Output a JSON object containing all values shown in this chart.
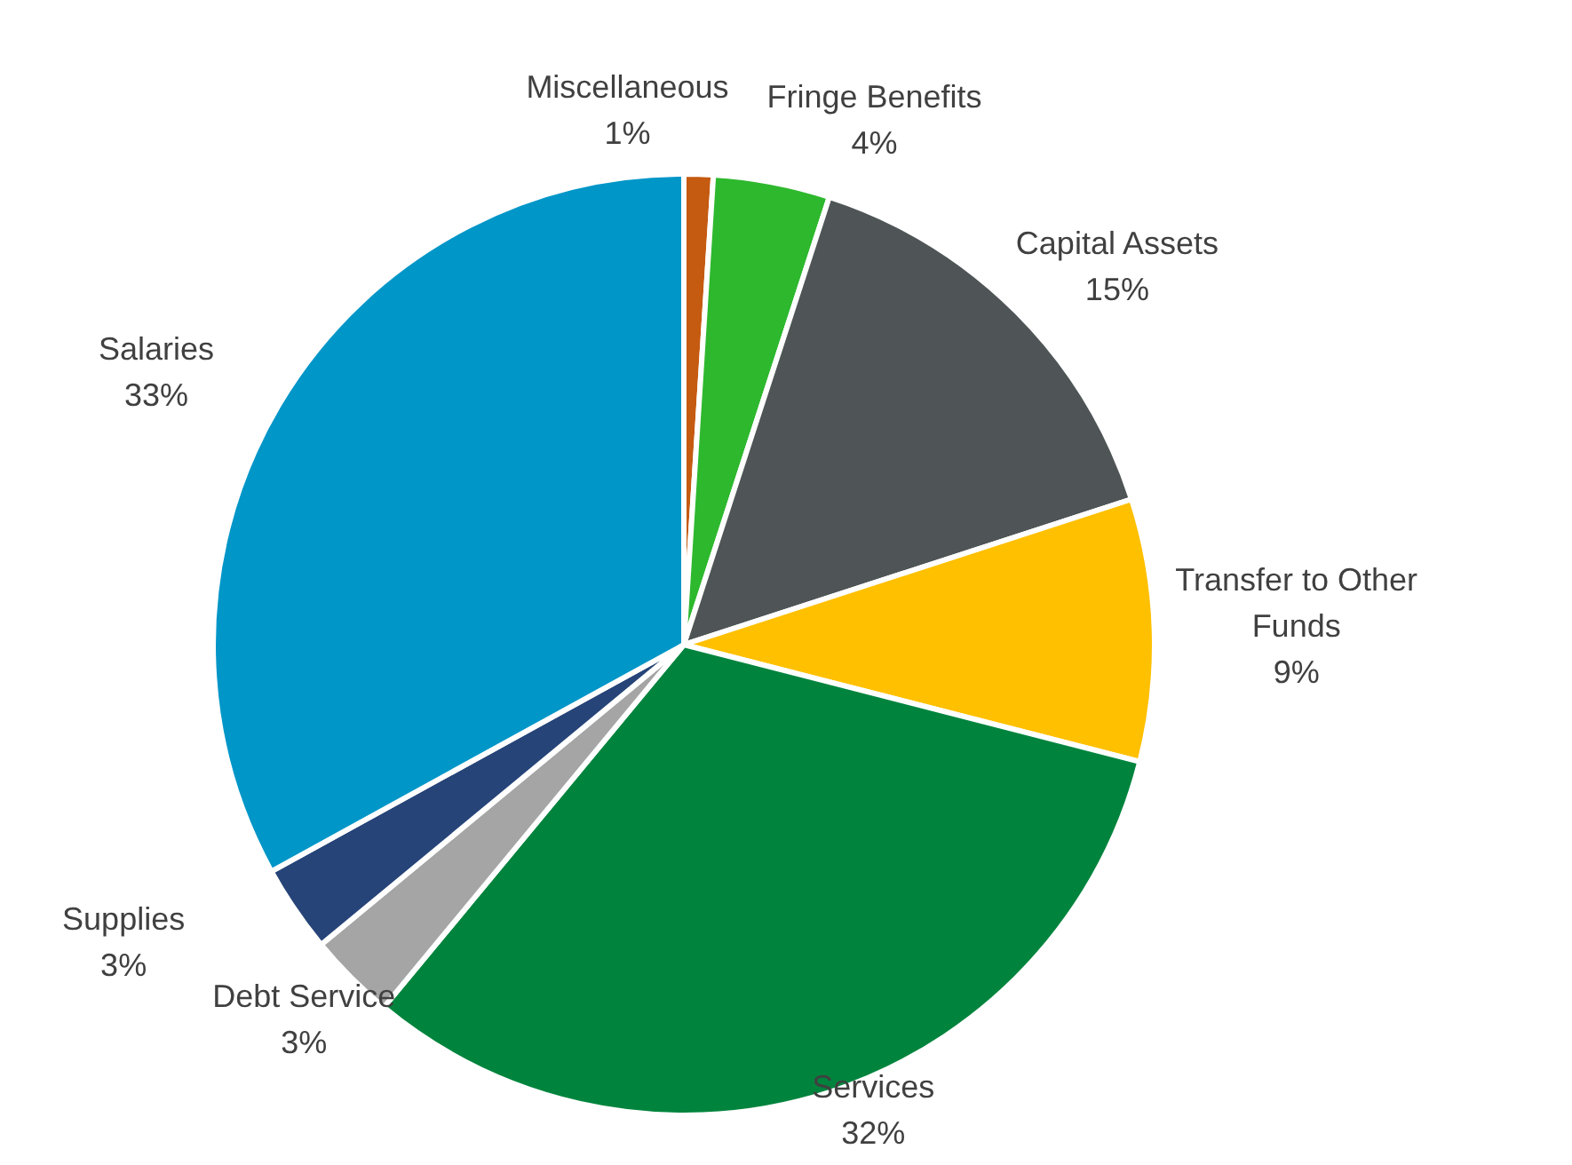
{
  "chart_data": {
    "type": "pie",
    "categories": [
      "Miscellaneous",
      "Fringe Benefits",
      "Capital Assets",
      "Transfer to Other Funds",
      "Services",
      "Debt Service",
      "Supplies",
      "Salaries"
    ],
    "values": [
      1,
      4,
      15,
      9,
      32,
      3,
      3,
      33
    ],
    "value_labels": [
      "1%",
      "4%",
      "15%",
      "9%",
      "32%",
      "3%",
      "3%",
      "33%"
    ],
    "colors": [
      "#c55a11",
      "#2eb82e",
      "#4f5556",
      "#ffc000",
      "#00843d",
      "#a5a5a5",
      "#264478",
      "#0096c8"
    ]
  }
}
